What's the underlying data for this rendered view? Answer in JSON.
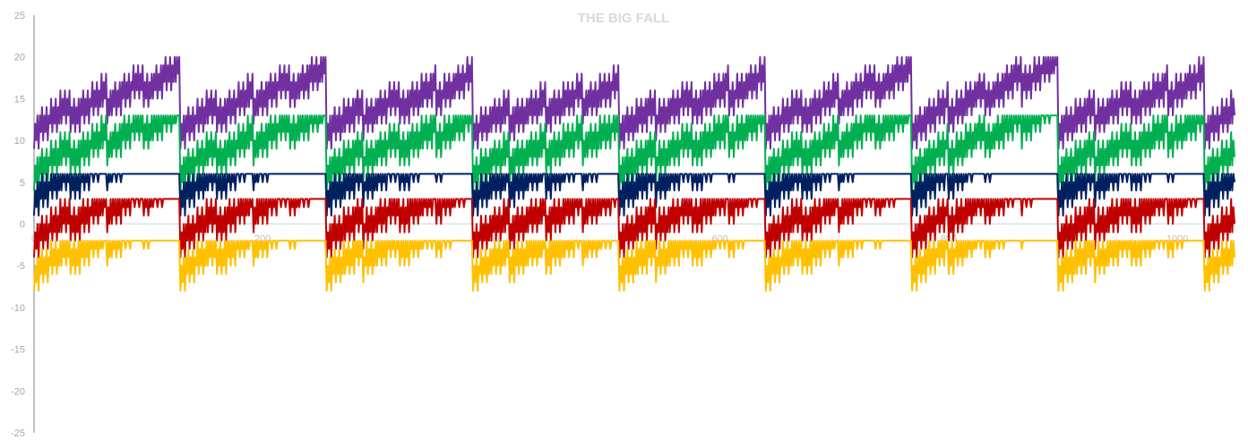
{
  "chart_data": {
    "type": "line",
    "title": "THE BIG FALL",
    "xlabel": "",
    "ylabel": "",
    "xlim": [
      0,
      1050
    ],
    "ylim": [
      -25,
      25
    ],
    "y_ticks": [
      -25,
      -20,
      -15,
      -10,
      -5,
      0,
      5,
      10,
      15,
      20,
      25
    ],
    "x_ticks": [
      0,
      200,
      400,
      600,
      800,
      1000
    ],
    "x_tick_labels": [
      "0",
      "200",
      "400",
      "600",
      "800",
      "1000"
    ],
    "grid": false,
    "legend": "none",
    "pattern": {
      "cycle_length": 128,
      "sub_length": 32,
      "sub_amplitude": 3,
      "inner_period": 4,
      "inner_shape": [
        0,
        3,
        1,
        4
      ],
      "cycle_peak_offsets": [
        2,
        2,
        1,
        0,
        1,
        2,
        3,
        1
      ]
    },
    "series": [
      {
        "color": "#7030A0",
        "values_start": 9,
        "values_min": 3,
        "values_max": 20
      },
      {
        "color": "#00B050",
        "values_start": 4,
        "values_min": 0,
        "values_max": 13
      },
      {
        "color": "#002060",
        "values_start": 1,
        "values_min": -7,
        "values_max": 6
      },
      {
        "color": "#C00000",
        "values_start": -4,
        "values_min": -13,
        "values_max": 3
      },
      {
        "color": "#FFC000",
        "values_start": -8,
        "values_min": -19,
        "values_max": -2
      }
    ]
  }
}
